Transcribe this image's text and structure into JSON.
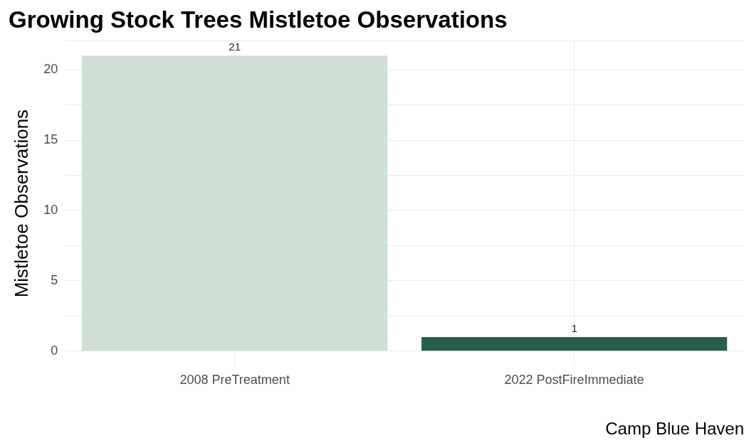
{
  "chart_data": {
    "type": "bar",
    "title": "Growing Stock Trees Mistletoe Observations",
    "xlabel": "Camp Blue Haven",
    "ylabel": "Mistletoe Observations",
    "categories": [
      "2008 PreTreatment",
      "2022 PostFireImmediate"
    ],
    "values": [
      21,
      1
    ],
    "colors": [
      "#d0e0d6",
      "#2a5e4c"
    ],
    "ylim": [
      -1.05,
      22.05
    ],
    "yticks": [
      0,
      {
        "value": 2.5,
        "label": null
      },
      5,
      {
        "value": 7.5,
        "label": null
      },
      10,
      {
        "value": 12.5,
        "label": null
      },
      15,
      {
        "value": 17.5,
        "label": null
      },
      20,
      {
        "value": 22.05,
        "label": null
      }
    ],
    "grid": true,
    "data_labels": true
  }
}
